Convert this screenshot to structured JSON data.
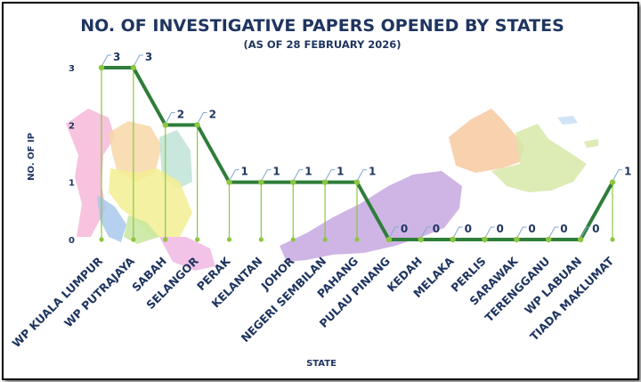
{
  "colors": {
    "title": "#1f3560",
    "line": "#2f7d3a",
    "drop_line": "#8dc63f",
    "label_callout": "#7fa7cf",
    "frame": "#000000"
  },
  "chart_data": {
    "type": "line",
    "title": "NO. OF INVESTIGATIVE PAPERS OPENED BY STATES",
    "subtitle": "(AS OF 28 FEBRUARY 2026)",
    "xlabel": "STATE",
    "ylabel": "NO. OF IP",
    "ylim": [
      0,
      3
    ],
    "yticks": [
      "0",
      "1",
      "2",
      "3"
    ],
    "grid": false,
    "legend": "none",
    "background": "map of Malaysia states",
    "categories": [
      "WP KUALA LUMPUR",
      "WP PUTRAJAYA",
      "SABAH",
      "SELANGOR",
      "PERAK",
      "KELANTAN",
      "JOHOR",
      "NEGERI SEMBILAN",
      "PAHANG",
      "PULAU PINANG",
      "KEDAH",
      "MELAKA",
      "PERLIS",
      "SARAWAK",
      "TERENGGANU",
      "WP LABUAN",
      "TIADA MAKLUMAT"
    ],
    "values": [
      3,
      3,
      2,
      2,
      1,
      1,
      1,
      1,
      1,
      0,
      0,
      0,
      0,
      0,
      0,
      0,
      1
    ],
    "data_labels": [
      "3",
      "3",
      "2",
      "2",
      "1",
      "1",
      "1",
      "1",
      "1",
      "0",
      "0",
      "0",
      "0",
      "0",
      "0",
      "0",
      "1"
    ]
  }
}
